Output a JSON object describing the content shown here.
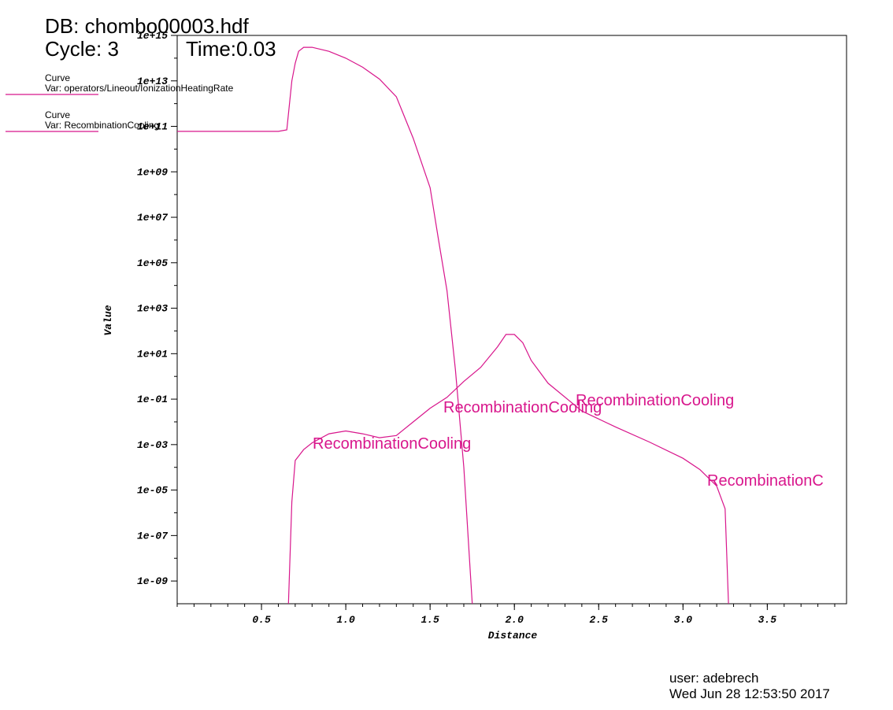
{
  "chart_data": {
    "type": "line",
    "header": {
      "db": "DB: chombo00003.hdf",
      "cycle": "Cycle: 3",
      "time": "Time:0.03"
    },
    "footer": {
      "user": "user: adebrech",
      "date": "Wed Jun 28 12:53:50 2017"
    },
    "x_label": "Distance",
    "y_label": "Value",
    "log_y": true,
    "xlim": [
      0,
      3.97
    ],
    "ylim": [
      1e-10,
      1000000000000000.0
    ],
    "xticks": [
      0.5,
      1.0,
      1.5,
      2.0,
      2.5,
      3.0,
      3.5
    ],
    "yticks": [
      {
        "value": 1000000000000000.0,
        "label": "1e+15"
      },
      {
        "value": 10000000000000.0,
        "label": "1e+13"
      },
      {
        "value": 100000000000.0,
        "label": "1e+11"
      },
      {
        "value": 1000000000.0,
        "label": "1e+09"
      },
      {
        "value": 10000000.0,
        "label": "1e+07"
      },
      {
        "value": 100000.0,
        "label": "1e+05"
      },
      {
        "value": 1000.0,
        "label": "1e+03"
      },
      {
        "value": 10,
        "label": "1e+01"
      },
      {
        "value": 0.1,
        "label": "1e-01"
      },
      {
        "value": 0.001,
        "label": "1e-03"
      },
      {
        "value": 1e-05,
        "label": "1e-05"
      },
      {
        "value": 1e-07,
        "label": "1e-07"
      },
      {
        "value": 1e-09,
        "label": "1e-09"
      }
    ],
    "series": [
      {
        "label": "Curve",
        "name": "Var: operators/Lineout/IonizationHeatingRate",
        "color": "#d8168c",
        "x": [
          0,
          0.3,
          0.6,
          0.65,
          0.68,
          0.7,
          0.72,
          0.75,
          0.8,
          0.9,
          1.0,
          1.1,
          1.2,
          1.3,
          1.4,
          1.5,
          1.55,
          1.6,
          1.65,
          1.7,
          1.75
        ],
        "values": [
          60000000000.0,
          60000000000.0,
          60000000000.0,
          70000000000.0,
          10000000000000.0,
          60000000000000.0,
          200000000000000.0,
          300000000000000.0,
          300000000000000.0,
          200000000000000.0,
          100000000000000.0,
          40000000000000.0,
          12000000000000.0,
          2000000000000.0,
          30000000000.0,
          200000000.0,
          1000000.0,
          6000.0,
          2,
          0.0001,
          1e-10
        ]
      },
      {
        "label": "Curve",
        "name": "Var: RecombinationCooling",
        "color": "#d8168c",
        "x": [
          0.66,
          0.68,
          0.7,
          0.75,
          0.8,
          0.9,
          1.0,
          1.1,
          1.2,
          1.3,
          1.4,
          1.5,
          1.6,
          1.7,
          1.8,
          1.9,
          1.95,
          2.0,
          2.05,
          2.1,
          2.2,
          2.4,
          2.6,
          2.8,
          3.0,
          3.1,
          3.2,
          3.25,
          3.27
        ],
        "values": [
          1e-10,
          3e-06,
          0.0002,
          0.0006,
          0.0012,
          0.003,
          0.004,
          0.003,
          0.002,
          0.0025,
          0.01,
          0.04,
          0.12,
          0.6,
          2.5,
          20,
          70,
          70,
          30,
          5,
          0.5,
          0.03,
          0.006,
          0.0013,
          0.00025,
          8e-05,
          1.5e-05,
          1.5e-06,
          1e-10
        ]
      }
    ],
    "annotations": [
      "RecombinationCooling",
      "RecombinationCooling",
      "RecombinationCooling",
      "RecombinationC"
    ]
  }
}
